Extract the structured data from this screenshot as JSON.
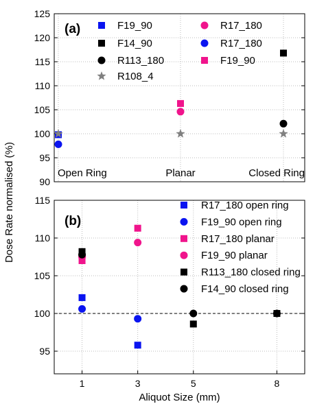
{
  "chart_data": [
    {
      "type": "scatter",
      "panel_label": "(a)",
      "categories": [
        "Open Ring",
        "Planar",
        "Closed Ring"
      ],
      "ylim": [
        90,
        125
      ],
      "yticks": [
        90,
        95,
        100,
        105,
        110,
        115,
        120,
        125
      ],
      "grid": true,
      "legend_position": "top",
      "series": [
        {
          "name": "F19_90",
          "marker": "square",
          "color": "#0a14f0",
          "points": [
            {
              "x": "Open Ring",
              "y": 99.8
            }
          ]
        },
        {
          "name": "F14_90",
          "marker": "square",
          "color": "#000000",
          "points": [
            {
              "x": "Closed Ring",
              "y": 116.8
            }
          ]
        },
        {
          "name": "R113_180",
          "marker": "circle",
          "color": "#000000",
          "points": [
            {
              "x": "Closed Ring",
              "y": 102.1
            }
          ]
        },
        {
          "name": "R108_4",
          "marker": "star",
          "color": "#808080",
          "points": [
            {
              "x": "Open Ring",
              "y": 100.0
            },
            {
              "x": "Planar",
              "y": 100.0
            },
            {
              "x": "Closed Ring",
              "y": 100.0
            }
          ]
        },
        {
          "name": "R17_180",
          "marker": "circle",
          "color": "#f0148c",
          "points": [
            {
              "x": "Planar",
              "y": 104.6
            }
          ]
        },
        {
          "name": "R17_180",
          "marker": "circle",
          "color": "#0a14f0",
          "points": [
            {
              "x": "Open Ring",
              "y": 97.8
            }
          ]
        },
        {
          "name": "F19_90",
          "marker": "square",
          "color": "#f0148c",
          "points": [
            {
              "x": "Planar",
              "y": 106.3
            }
          ]
        }
      ]
    },
    {
      "type": "scatter",
      "panel_label": "(b)",
      "xlabel": "Aliquot Size (mm)",
      "x_ticks": [
        1,
        3,
        5,
        8
      ],
      "xlim": [
        0,
        9
      ],
      "ylim": [
        92,
        115
      ],
      "yticks": [
        95,
        100,
        105,
        110,
        115
      ],
      "reference_line": 100,
      "grid": true,
      "legend_position": "right",
      "series": [
        {
          "name": "R17_180 open ring",
          "marker": "square",
          "color": "#0a14f0",
          "points": [
            {
              "x": 1,
              "y": 102.1
            },
            {
              "x": 3,
              "y": 95.8
            }
          ]
        },
        {
          "name": "F19_90 open ring",
          "marker": "circle",
          "color": "#0a14f0",
          "points": [
            {
              "x": 1,
              "y": 100.6
            },
            {
              "x": 3,
              "y": 99.3
            }
          ]
        },
        {
          "name": "R17_180 planar",
          "marker": "square",
          "color": "#f0148c",
          "points": [
            {
              "x": 1,
              "y": 107.0
            },
            {
              "x": 3,
              "y": 111.3
            }
          ]
        },
        {
          "name": "F19_90 planar",
          "marker": "circle",
          "color": "#f0148c",
          "points": [
            {
              "x": 1,
              "y": 107.5
            },
            {
              "x": 3,
              "y": 109.4
            }
          ]
        },
        {
          "name": "R113_180 closed ring",
          "marker": "square",
          "color": "#000000",
          "points": [
            {
              "x": 1,
              "y": 108.2
            },
            {
              "x": 5,
              "y": 98.6
            },
            {
              "x": 8,
              "y": 100.0
            }
          ]
        },
        {
          "name": "F14_90 closed ring",
          "marker": "circle",
          "color": "#000000",
          "points": [
            {
              "x": 1,
              "y": 107.8
            },
            {
              "x": 5,
              "y": 100.0
            },
            {
              "x": 8,
              "y": 100.0
            }
          ]
        }
      ]
    }
  ],
  "shared_ylabel": "Dose Rate normalised (%)"
}
